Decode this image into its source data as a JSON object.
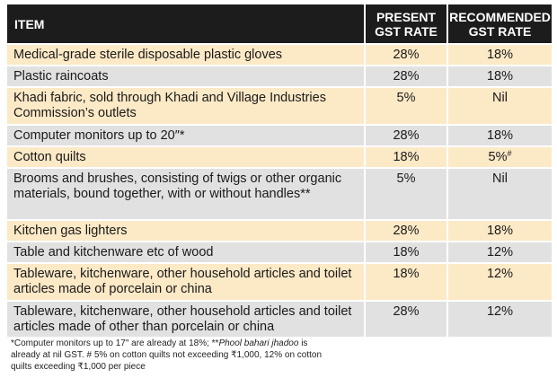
{
  "table": {
    "headers": {
      "item": "ITEM",
      "present_l1": "PRESENT",
      "present_l2": "GST RATE",
      "recommended_l1": "RECOMMENDED",
      "recommended_l2": "GST RATE"
    },
    "rows": [
      {
        "item": "Medical-grade sterile disposable plastic gloves",
        "present": "28%",
        "recommended": "18%"
      },
      {
        "item": "Plastic raincoats",
        "present": "28%",
        "recommended": "18%"
      },
      {
        "item": "Khadi fabric, sold through Khadi and Village Industries Commission’s outlets",
        "present": "5%",
        "recommended": "Nil"
      },
      {
        "item": "Computer monitors up to 20″*",
        "present": "28%",
        "recommended": "18%"
      },
      {
        "item": "Cotton quilts",
        "present": "18%",
        "recommended": "5%",
        "recommended_mark": "#"
      },
      {
        "item": "Brooms and brushes, consisting of twigs or other organic materials, bound together, with or without handles**",
        "present": "5%",
        "recommended": "Nil"
      },
      {
        "item": "Kitchen gas lighters",
        "present": "28%",
        "recommended": "18%"
      },
      {
        "item": "Table and kitchenware etc of wood",
        "present": "18%",
        "recommended": "12%"
      },
      {
        "item": "Tableware, kitchenware, other household articles and toilet articles made of porcelain or china",
        "present": "18%",
        "recommended": "12%"
      },
      {
        "item": "Tableware, kitchenware, other household articles and toilet articles made of other than porcelain or china",
        "present": "28%",
        "recommended": "12%"
      }
    ]
  },
  "footnote": {
    "part1": "*Computer monitors up to 17″ are already at 18%; **",
    "italic": "Phool bahari jhadoo",
    "part2": " is already at nil GST. # 5% on cotton quilts not exceeding ₹1,000, 12% on cotton quilts exceeding ₹1,000 per piece"
  }
}
